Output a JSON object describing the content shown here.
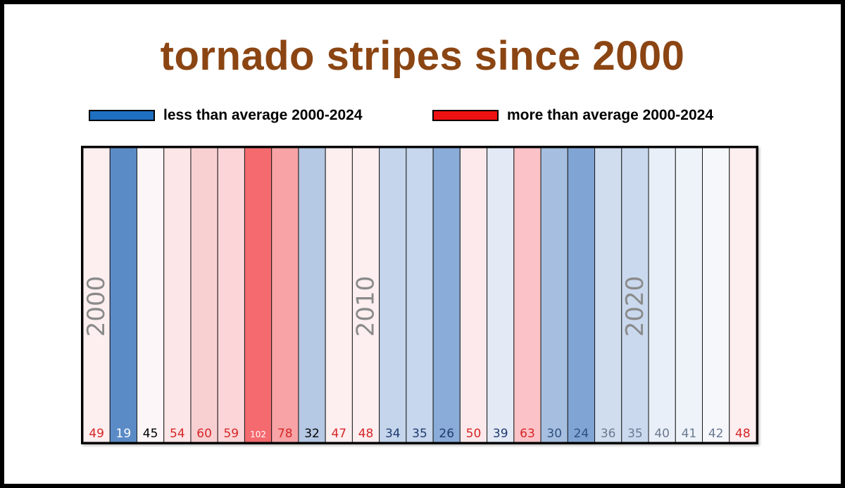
{
  "title": "tornado stripes since 2000",
  "legend": {
    "less_label": "less than average 2000-2024",
    "more_label": "more than average 2000-2024",
    "less_color": "#1f6fc1",
    "more_color": "#ee1111"
  },
  "chart_data": {
    "type": "heatmap",
    "title": "tornado stripes since 2000",
    "years": [
      2000,
      2001,
      2002,
      2003,
      2004,
      2005,
      2006,
      2007,
      2008,
      2009,
      2010,
      2011,
      2012,
      2013,
      2014,
      2015,
      2016,
      2017,
      2018,
      2019,
      2020,
      2021,
      2022,
      2023,
      2024
    ],
    "values": [
      49,
      19,
      45,
      54,
      60,
      59,
      102,
      78,
      32,
      47,
      48,
      34,
      35,
      26,
      50,
      39,
      63,
      30,
      24,
      36,
      35,
      40,
      41,
      42,
      48
    ],
    "decade_labels": [
      "2000",
      "2010",
      "2020"
    ],
    "colors": [
      "#fdeff0",
      "#5b8bc7",
      "#fcf6f8",
      "#fde6e7",
      "#f9d0d2",
      "#fbd5d8",
      "#f56a6e",
      "#f8a3a6",
      "#b5c8e4",
      "#fdeef0",
      "#fdeef0",
      "#c4d5ec",
      "#c7d7ed",
      "#89acd8",
      "#fde9eb",
      "#e3eaf6",
      "#fbc3c7",
      "#a6bfe0",
      "#80a5d4",
      "#d0ddef",
      "#cad9ee",
      "#e9eff8",
      "#eef3f9",
      "#f5f7fb",
      "#fdeef0"
    ],
    "label_colors": [
      "#d62626",
      "#ffffff",
      "#000000",
      "#d62626",
      "#d62626",
      "#d62626",
      "#ffffff",
      "#d62626",
      "#000000",
      "#d62626",
      "#d62626",
      "#1f3a6e",
      "#1f3a6e",
      "#1f3a6e",
      "#d62626",
      "#1f3a6e",
      "#d62626",
      "#2f4f7f",
      "#2f4f7f",
      "#6a7a90",
      "#6a7a90",
      "#6a7a90",
      "#6a7a90",
      "#6a7a90",
      "#d62626"
    ]
  }
}
